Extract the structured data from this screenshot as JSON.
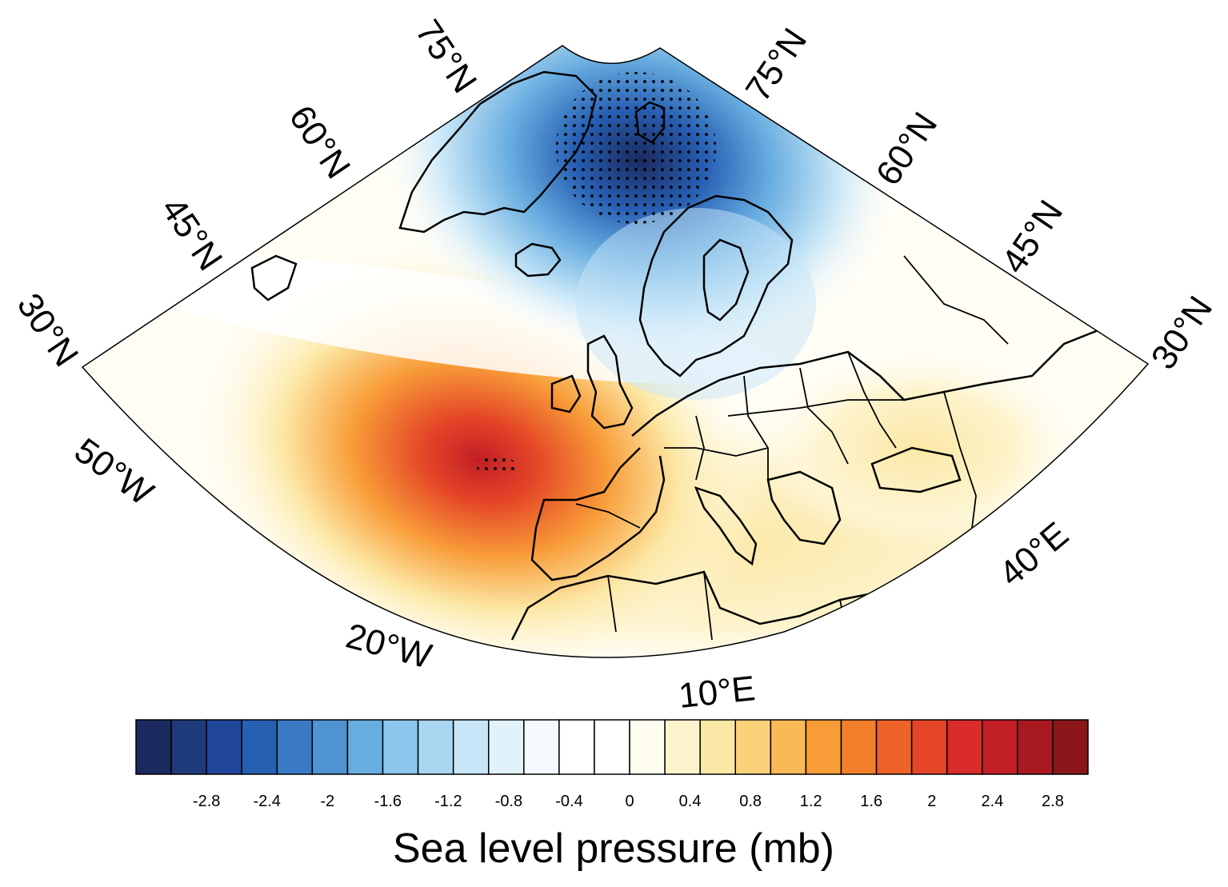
{
  "map": {
    "projection": "conic sector",
    "lat_labels_left": [
      "30°N",
      "45°N",
      "60°N",
      "75°N"
    ],
    "lat_labels_right": [
      "75°N",
      "60°N",
      "45°N",
      "30°N"
    ],
    "lon_labels": [
      "50°W",
      "20°W",
      "10°E",
      "40°E"
    ],
    "field": "sea level pressure anomaly",
    "features": [
      {
        "type": "negative anomaly",
        "center": "Norwegian Sea / Svalbard",
        "min": -3.0,
        "stippled": true
      },
      {
        "type": "positive anomaly",
        "center": "Bay of Biscay west of France",
        "max": 3.0,
        "stippled": true
      }
    ]
  },
  "colorbar": {
    "title": "Sea level pressure (mb)",
    "tick_labels": [
      "-2.8",
      "-2.4",
      "-2",
      "-1.6",
      "-1.2",
      "-0.8",
      "-0.4",
      "0",
      "0.4",
      "0.8",
      "1.2",
      "1.6",
      "2",
      "2.4",
      "2.8"
    ],
    "colors": [
      "#1b2a5e",
      "#1e3a7a",
      "#21479a",
      "#275fb3",
      "#3a7ac4",
      "#4f93d2",
      "#68ade0",
      "#8cc6ec",
      "#a9d7f2",
      "#c7e6f7",
      "#e2f2fb",
      "#f4faff",
      "#ffffff",
      "#ffffff",
      "#fffdf0",
      "#fdf3cc",
      "#fce8a6",
      "#fbd27a",
      "#f9b955",
      "#f89c38",
      "#f2802b",
      "#ec6228",
      "#e44627",
      "#d92b2a",
      "#c21e26",
      "#a81a20",
      "#8a161a"
    ]
  }
}
